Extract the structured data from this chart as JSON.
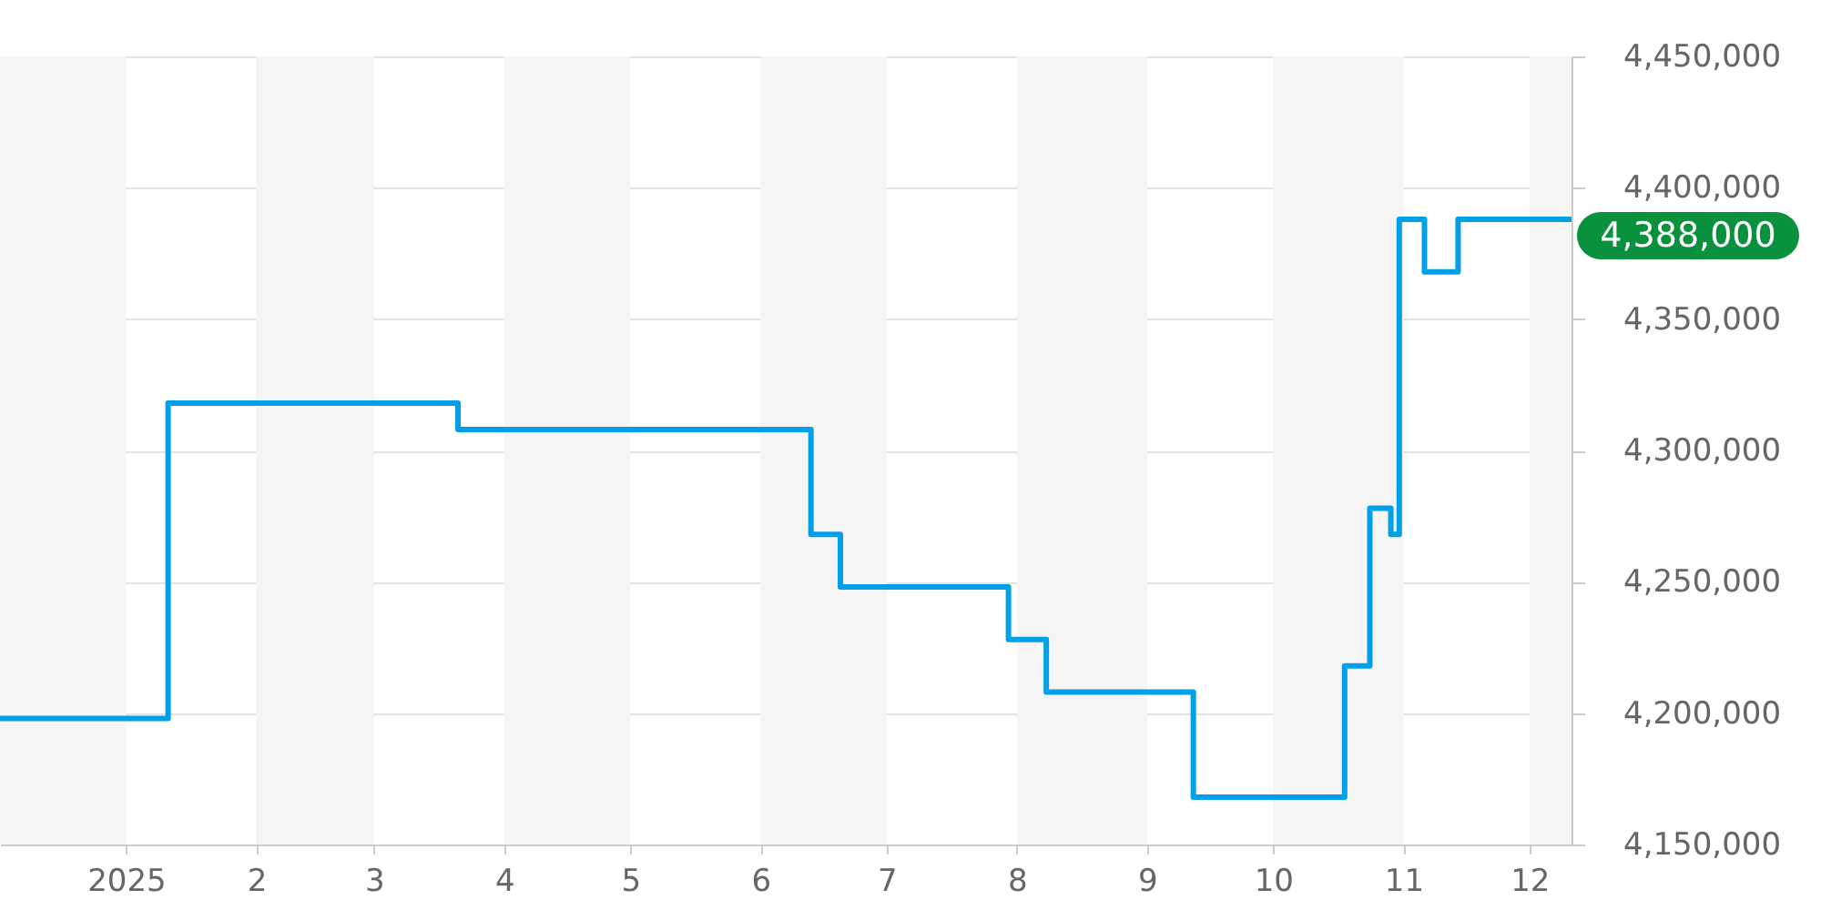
{
  "chart_data": {
    "type": "step",
    "color": "#00a0e9",
    "line_style": "solid",
    "x": [
      "2024-12-02",
      "2025-01-11",
      "2025-03-21",
      "2025-06-13",
      "2025-06-20",
      "2025-07-30",
      "2025-08-08",
      "2025-09-12",
      "2025-10-18",
      "2025-10-24",
      "2025-10-29",
      "2025-10-31",
      "2025-11-06",
      "2025-11-14",
      "2025-12-11"
    ],
    "values": [
      4198000,
      4318000,
      4308000,
      4268000,
      4248000,
      4228000,
      4208000,
      4168000,
      4218000,
      4278000,
      4268000,
      4388000,
      4368000,
      4388000,
      4388000
    ],
    "xlim": [
      "2024-12-02",
      "2025-12-11"
    ],
    "xticks": [
      {
        "value": "2025-01-01",
        "label": "2025"
      },
      {
        "value": "2025-02-01",
        "label": "2"
      },
      {
        "value": "2025-03-01",
        "label": "3"
      },
      {
        "value": "2025-04-01",
        "label": "4"
      },
      {
        "value": "2025-05-01",
        "label": "5"
      },
      {
        "value": "2025-06-01",
        "label": "6"
      },
      {
        "value": "2025-07-01",
        "label": "7"
      },
      {
        "value": "2025-08-01",
        "label": "8"
      },
      {
        "value": "2025-09-01",
        "label": "9"
      },
      {
        "value": "2025-10-01",
        "label": "10"
      },
      {
        "value": "2025-11-01",
        "label": "11"
      },
      {
        "value": "2025-12-01",
        "label": "12"
      }
    ],
    "ylim": [
      4150000,
      4450000
    ],
    "yticks": [
      {
        "value": 4150000,
        "label": "4,150,000"
      },
      {
        "value": 4200000,
        "label": "4,200,000"
      },
      {
        "value": 4250000,
        "label": "4,250,000"
      },
      {
        "value": 4300000,
        "label": "4,300,000"
      },
      {
        "value": 4350000,
        "label": "4,350,000"
      },
      {
        "value": 4400000,
        "label": "4,400,000"
      },
      {
        "value": 4450000,
        "label": "4,450,000"
      }
    ],
    "grid": "y",
    "bands": [
      {
        "axis": "x",
        "from": "2024-12-02",
        "to": "2025-01-01",
        "color": "#f5f5f5"
      },
      {
        "axis": "x",
        "from": "2025-02-01",
        "to": "2025-03-01",
        "color": "#f5f5f5"
      },
      {
        "axis": "x",
        "from": "2025-04-01",
        "to": "2025-05-01",
        "color": "#f5f5f5"
      },
      {
        "axis": "x",
        "from": "2025-06-01",
        "to": "2025-07-01",
        "color": "#f5f5f5"
      },
      {
        "axis": "x",
        "from": "2025-08-01",
        "to": "2025-09-01",
        "color": "#f5f5f5"
      },
      {
        "axis": "x",
        "from": "2025-10-01",
        "to": "2025-11-01",
        "color": "#f5f5f5"
      },
      {
        "axis": "x",
        "from": "2025-12-01",
        "to": "2025-12-11",
        "color": "#f5f5f5"
      }
    ],
    "annotations": [
      {
        "text": "4,388,000",
        "x": "2025-12-11",
        "y": 4388000
      }
    ]
  }
}
